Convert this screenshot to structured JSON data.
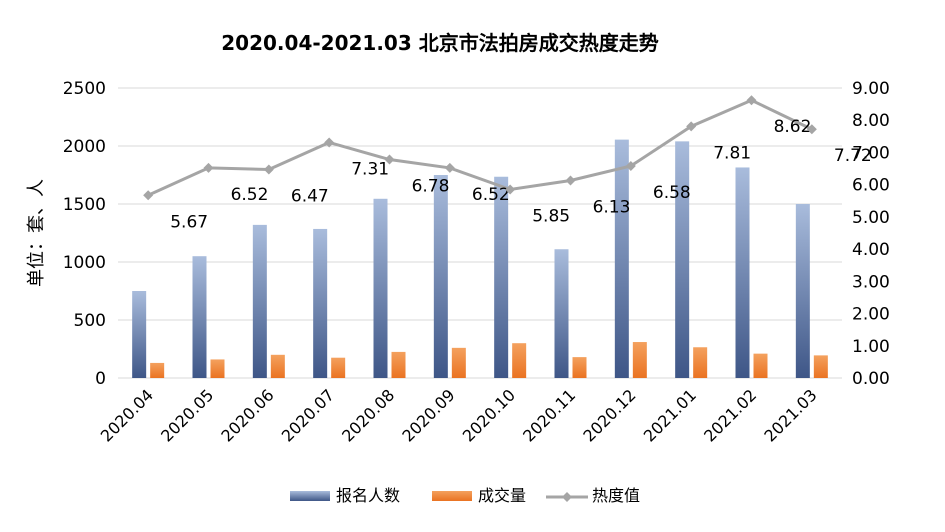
{
  "chart_data": {
    "type": "bar",
    "title": "2020.04-2021.03 北京市法拍房成交热度走势",
    "ylabel": "单位：套、人",
    "categories": [
      "2020.04",
      "2020.05",
      "2020.06",
      "2020.07",
      "2020.08",
      "2020.09",
      "2020.10",
      "2020.11",
      "2020.12",
      "2021.01",
      "2021.02",
      "2021.03"
    ],
    "ylim": [
      0,
      2500
    ],
    "y_ticks": [
      "0",
      "500",
      "1000",
      "1500",
      "2000",
      "2500"
    ],
    "y2lim": [
      0,
      9
    ],
    "y2_ticks": [
      "0.00",
      "1.00",
      "2.00",
      "3.00",
      "4.00",
      "5.00",
      "6.00",
      "7.00",
      "8.00",
      "9.00"
    ],
    "grid": true,
    "legend_position": "bottom",
    "series": [
      {
        "name": "报名人数",
        "kind": "bar",
        "color": "#4a6494",
        "values": [
          750,
          1050,
          1320,
          1285,
          1545,
          1750,
          1735,
          1110,
          2055,
          2040,
          1815,
          1500
        ]
      },
      {
        "name": "成交量",
        "kind": "bar",
        "color": "#ed7d31",
        "values": [
          130,
          160,
          200,
          175,
          225,
          260,
          300,
          180,
          310,
          265,
          210,
          195
        ]
      },
      {
        "name": "热度值",
        "kind": "line",
        "axis": "right",
        "color": "#a5a5a5",
        "values": [
          5.67,
          6.52,
          6.47,
          7.31,
          6.78,
          6.52,
          5.85,
          6.13,
          6.58,
          7.81,
          8.62,
          7.72
        ],
        "labels": [
          "5.67",
          "6.52",
          "6.47",
          "7.31",
          "6.78",
          "6.52",
          "5.85",
          "6.13",
          "6.58",
          "7.81",
          "8.62",
          "7.72"
        ]
      }
    ]
  }
}
